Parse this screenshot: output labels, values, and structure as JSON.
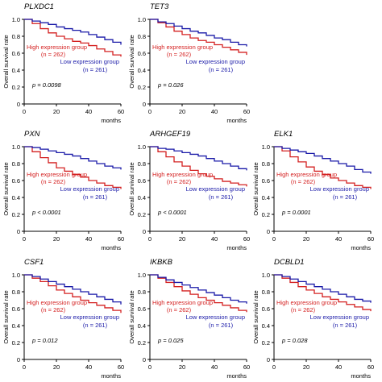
{
  "figure": {
    "panel_ylabel": "Overall survival rate",
    "panel_xlabel": "months",
    "colors": {
      "high": "#d42020",
      "low": "#1a1aa8",
      "axis": "#000000"
    }
  },
  "chart_data": [
    {
      "type": "line",
      "title": "PLXDC1",
      "pvalue": "p = 0.0098",
      "xlabel": "months",
      "ylabel": "Overall survival rate",
      "xlim": [
        0,
        60
      ],
      "ylim": [
        0,
        1.0
      ],
      "xticks": [
        0,
        20,
        40,
        60
      ],
      "yticks": [
        0,
        0.2,
        0.4,
        0.6,
        0.8,
        1.0
      ],
      "grid": false,
      "annotations": {
        "high_label": "High expression group",
        "high_n": "(n = 262)",
        "low_label": "Low expression group",
        "low_n": "(n = 261)"
      },
      "series": [
        {
          "name": "High expression group",
          "color": "#d42020",
          "x": [
            0,
            5,
            10,
            15,
            20,
            25,
            30,
            35,
            40,
            45,
            50,
            55,
            60
          ],
          "y": [
            1.0,
            0.95,
            0.89,
            0.84,
            0.8,
            0.77,
            0.74,
            0.72,
            0.69,
            0.65,
            0.62,
            0.58,
            0.56
          ]
        },
        {
          "name": "Low expression group",
          "color": "#1a1aa8",
          "x": [
            0,
            5,
            10,
            15,
            20,
            25,
            30,
            35,
            40,
            45,
            50,
            55,
            60
          ],
          "y": [
            1.0,
            0.98,
            0.96,
            0.94,
            0.91,
            0.89,
            0.87,
            0.85,
            0.82,
            0.79,
            0.76,
            0.73,
            0.7
          ]
        }
      ]
    },
    {
      "type": "line",
      "title": "TET3",
      "pvalue": "p = 0.026",
      "xlabel": "months",
      "ylabel": "Overall survival rate",
      "xlim": [
        0,
        60
      ],
      "ylim": [
        0,
        1.0
      ],
      "xticks": [
        0,
        20,
        40,
        60
      ],
      "yticks": [
        0,
        0.2,
        0.4,
        0.6,
        0.8,
        1.0
      ],
      "grid": false,
      "annotations": {
        "high_label": "High expression group",
        "high_n": "(n = 262)",
        "low_label": "Low expression group",
        "low_n": "(n = 261)"
      },
      "series": [
        {
          "name": "High expression group",
          "color": "#d42020",
          "x": [
            0,
            5,
            10,
            15,
            20,
            25,
            30,
            35,
            40,
            45,
            50,
            55,
            60
          ],
          "y": [
            1.0,
            0.96,
            0.91,
            0.86,
            0.82,
            0.78,
            0.75,
            0.73,
            0.7,
            0.67,
            0.64,
            0.61,
            0.58
          ]
        },
        {
          "name": "Low expression group",
          "color": "#1a1aa8",
          "x": [
            0,
            5,
            10,
            15,
            20,
            25,
            30,
            35,
            40,
            45,
            50,
            55,
            60
          ],
          "y": [
            1.0,
            0.97,
            0.95,
            0.92,
            0.89,
            0.86,
            0.84,
            0.81,
            0.78,
            0.76,
            0.73,
            0.7,
            0.68
          ]
        }
      ]
    },
    {
      "type": "line",
      "title": "PXN",
      "pvalue": "p < 0.0001",
      "xlabel": "months",
      "ylabel": "Overall survival rate",
      "xlim": [
        0,
        60
      ],
      "ylim": [
        0,
        1.0
      ],
      "xticks": [
        0,
        20,
        40,
        60
      ],
      "yticks": [
        0,
        0.2,
        0.4,
        0.6,
        0.8,
        1.0
      ],
      "grid": false,
      "annotations": {
        "high_label": "High expression group",
        "high_n": "(n = 262)",
        "low_label": "Low expression group",
        "low_n": "(n = 261)"
      },
      "series": [
        {
          "name": "High expression group",
          "color": "#d42020",
          "x": [
            0,
            5,
            10,
            15,
            20,
            25,
            30,
            35,
            40,
            45,
            50,
            55,
            60
          ],
          "y": [
            1.0,
            0.94,
            0.87,
            0.81,
            0.75,
            0.71,
            0.67,
            0.64,
            0.6,
            0.57,
            0.54,
            0.52,
            0.5
          ]
        },
        {
          "name": "Low expression group",
          "color": "#1a1aa8",
          "x": [
            0,
            5,
            10,
            15,
            20,
            25,
            30,
            35,
            40,
            45,
            50,
            55,
            60
          ],
          "y": [
            1.0,
            0.99,
            0.97,
            0.95,
            0.93,
            0.91,
            0.89,
            0.86,
            0.83,
            0.8,
            0.77,
            0.75,
            0.73
          ]
        }
      ]
    },
    {
      "type": "line",
      "title": "ARHGEF19",
      "pvalue": "p < 0.0001",
      "xlabel": "months",
      "ylabel": "Overall survival rate",
      "xlim": [
        0,
        60
      ],
      "ylim": [
        0,
        1.0
      ],
      "xticks": [
        0,
        20,
        40,
        60
      ],
      "yticks": [
        0,
        0.2,
        0.4,
        0.6,
        0.8,
        1.0
      ],
      "grid": false,
      "annotations": {
        "high_label": "High expression group",
        "high_n": "(n = 262)",
        "low_label": "Low expression group",
        "low_n": "(n = 261)"
      },
      "series": [
        {
          "name": "High expression group",
          "color": "#d42020",
          "x": [
            0,
            5,
            10,
            15,
            20,
            25,
            30,
            35,
            40,
            45,
            50,
            55,
            60
          ],
          "y": [
            1.0,
            0.94,
            0.88,
            0.82,
            0.77,
            0.72,
            0.68,
            0.65,
            0.62,
            0.59,
            0.57,
            0.55,
            0.53
          ]
        },
        {
          "name": "Low expression group",
          "color": "#1a1aa8",
          "x": [
            0,
            5,
            10,
            15,
            20,
            25,
            30,
            35,
            40,
            45,
            50,
            55,
            60
          ],
          "y": [
            1.0,
            0.98,
            0.97,
            0.95,
            0.93,
            0.91,
            0.89,
            0.86,
            0.83,
            0.8,
            0.77,
            0.74,
            0.72
          ]
        }
      ]
    },
    {
      "type": "line",
      "title": "ELK1",
      "pvalue": "p = 0.0001",
      "xlabel": "months",
      "ylabel": "Overall survival rate",
      "xlim": [
        0,
        60
      ],
      "ylim": [
        0,
        1.0
      ],
      "xticks": [
        0,
        20,
        40,
        60
      ],
      "yticks": [
        0,
        0.2,
        0.4,
        0.6,
        0.8,
        1.0
      ],
      "grid": false,
      "annotations": {
        "high_label": "High expression group",
        "high_n": "(n = 262)",
        "low_label": "Low expression group",
        "low_n": "(n = 261)"
      },
      "series": [
        {
          "name": "High expression group",
          "color": "#d42020",
          "x": [
            0,
            5,
            10,
            15,
            20,
            25,
            30,
            35,
            40,
            45,
            50,
            55,
            60
          ],
          "y": [
            1.0,
            0.95,
            0.88,
            0.82,
            0.76,
            0.71,
            0.67,
            0.63,
            0.6,
            0.57,
            0.54,
            0.52,
            0.5
          ]
        },
        {
          "name": "Low expression group",
          "color": "#1a1aa8",
          "x": [
            0,
            5,
            10,
            15,
            20,
            25,
            30,
            35,
            40,
            45,
            50,
            55,
            60
          ],
          "y": [
            1.0,
            0.98,
            0.96,
            0.94,
            0.92,
            0.89,
            0.86,
            0.83,
            0.8,
            0.77,
            0.73,
            0.7,
            0.68
          ]
        }
      ]
    },
    {
      "type": "line",
      "title": "CSF1",
      "pvalue": "p = 0.012",
      "xlabel": "months",
      "ylabel": "Overall survival rate",
      "xlim": [
        0,
        60
      ],
      "ylim": [
        0,
        1.0
      ],
      "xticks": [
        0,
        20,
        40,
        60
      ],
      "yticks": [
        0,
        0.2,
        0.4,
        0.6,
        0.8,
        1.0
      ],
      "grid": false,
      "annotations": {
        "high_label": "High expression group",
        "high_n": "(n = 262)",
        "low_label": "Low expression group",
        "low_n": "(n = 261)"
      },
      "series": [
        {
          "name": "High expression group",
          "color": "#d42020",
          "x": [
            0,
            5,
            10,
            15,
            20,
            25,
            30,
            35,
            40,
            45,
            50,
            55,
            60
          ],
          "y": [
            1.0,
            0.96,
            0.92,
            0.87,
            0.82,
            0.78,
            0.74,
            0.7,
            0.67,
            0.64,
            0.61,
            0.58,
            0.55
          ]
        },
        {
          "name": "Low expression group",
          "color": "#1a1aa8",
          "x": [
            0,
            5,
            10,
            15,
            20,
            25,
            30,
            35,
            40,
            45,
            50,
            55,
            60
          ],
          "y": [
            1.0,
            0.98,
            0.95,
            0.92,
            0.89,
            0.86,
            0.83,
            0.8,
            0.77,
            0.74,
            0.71,
            0.68,
            0.65
          ]
        }
      ]
    },
    {
      "type": "line",
      "title": "IKBKB",
      "pvalue": "p = 0.025",
      "xlabel": "months",
      "ylabel": "Overall survival rate",
      "xlim": [
        0,
        60
      ],
      "ylim": [
        0,
        1.0
      ],
      "xticks": [
        0,
        20,
        40,
        60
      ],
      "yticks": [
        0,
        0.2,
        0.4,
        0.6,
        0.8,
        1.0
      ],
      "grid": false,
      "annotations": {
        "high_label": "High expression group",
        "high_n": "(n = 262)",
        "low_label": "Low expression group",
        "low_n": "(n = 261)"
      },
      "series": [
        {
          "name": "High expression group",
          "color": "#d42020",
          "x": [
            0,
            5,
            10,
            15,
            20,
            25,
            30,
            35,
            40,
            45,
            50,
            55,
            60
          ],
          "y": [
            1.0,
            0.96,
            0.91,
            0.86,
            0.81,
            0.77,
            0.73,
            0.7,
            0.67,
            0.64,
            0.61,
            0.58,
            0.56
          ]
        },
        {
          "name": "Low expression group",
          "color": "#1a1aa8",
          "x": [
            0,
            5,
            10,
            15,
            20,
            25,
            30,
            35,
            40,
            45,
            50,
            55,
            60
          ],
          "y": [
            1.0,
            0.97,
            0.94,
            0.91,
            0.88,
            0.85,
            0.82,
            0.79,
            0.76,
            0.73,
            0.7,
            0.68,
            0.66
          ]
        }
      ]
    },
    {
      "type": "line",
      "title": "DCBLD1",
      "pvalue": "p = 0.028",
      "xlabel": "months",
      "ylabel": "Overall survival rate",
      "xlim": [
        0,
        60
      ],
      "ylim": [
        0,
        1.0
      ],
      "xticks": [
        0,
        20,
        40,
        60
      ],
      "yticks": [
        0,
        0.2,
        0.4,
        0.6,
        0.8,
        1.0
      ],
      "grid": false,
      "annotations": {
        "high_label": "High expression group",
        "high_n": "(n = 262)",
        "low_label": "Low expression group",
        "low_n": "(n = 261)"
      },
      "series": [
        {
          "name": "High expression group",
          "color": "#d42020",
          "x": [
            0,
            5,
            10,
            15,
            20,
            25,
            30,
            35,
            40,
            45,
            50,
            55,
            60
          ],
          "y": [
            1.0,
            0.96,
            0.91,
            0.86,
            0.82,
            0.78,
            0.74,
            0.71,
            0.68,
            0.65,
            0.62,
            0.59,
            0.57
          ]
        },
        {
          "name": "Low expression group",
          "color": "#1a1aa8",
          "x": [
            0,
            5,
            10,
            15,
            20,
            25,
            30,
            35,
            40,
            45,
            50,
            55,
            60
          ],
          "y": [
            1.0,
            0.98,
            0.95,
            0.92,
            0.89,
            0.86,
            0.83,
            0.8,
            0.77,
            0.74,
            0.71,
            0.69,
            0.67
          ]
        }
      ]
    }
  ]
}
